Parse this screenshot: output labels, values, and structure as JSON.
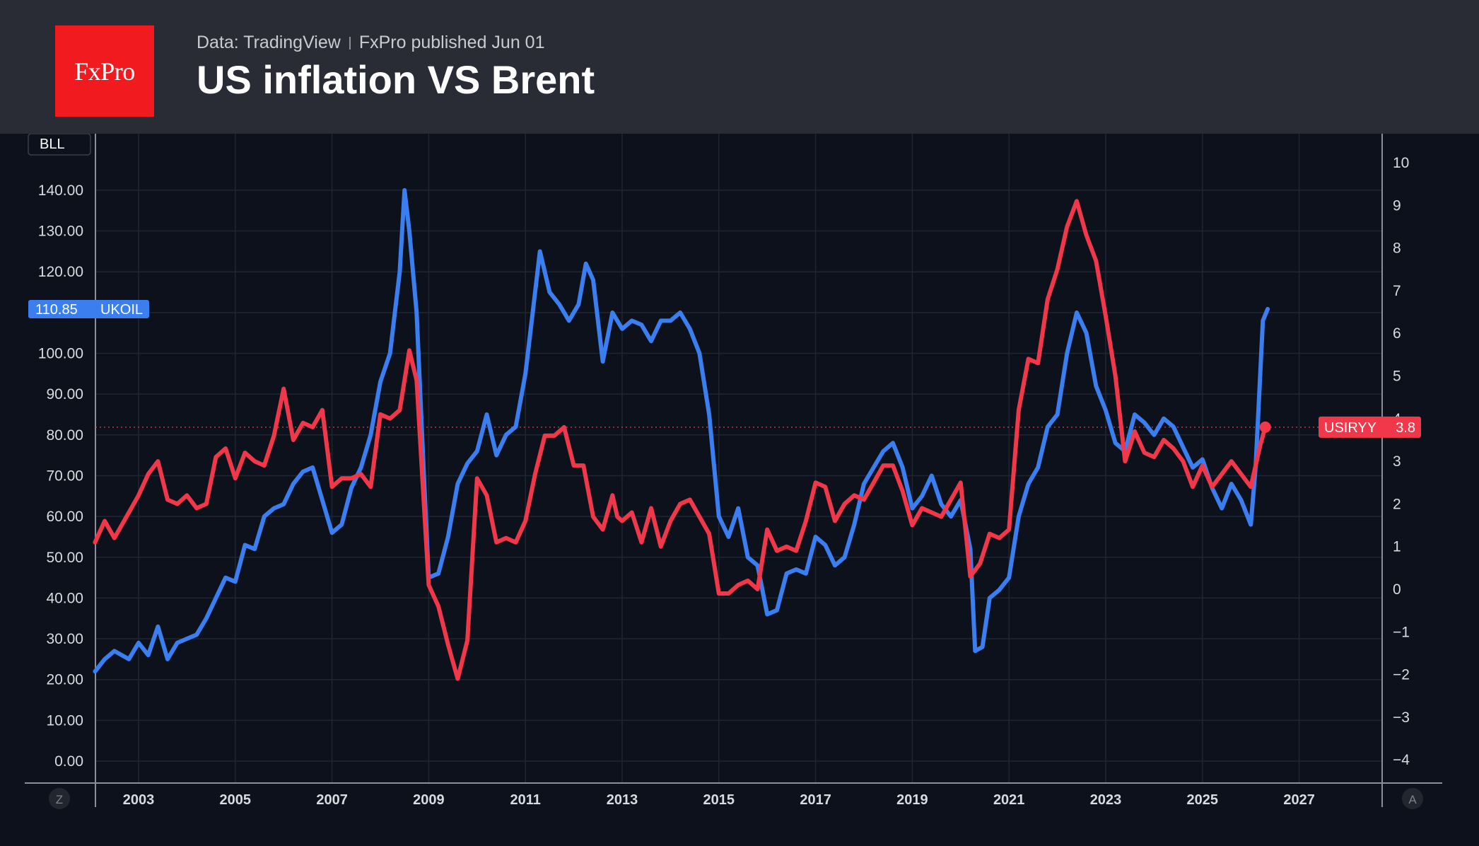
{
  "header": {
    "logo_text": "FxPro",
    "source": "Data: TradingView",
    "published": "FxPro published Jun 01",
    "title": "US inflation VS Brent"
  },
  "chart_data": {
    "type": "line",
    "x_axis": {
      "ticks": [
        "2003",
        "2005",
        "2007",
        "2009",
        "2011",
        "2013",
        "2015",
        "2017",
        "2019",
        "2021",
        "2023",
        "2025",
        "2027"
      ],
      "range": [
        2002.1,
        2029.8
      ]
    },
    "left_axis": {
      "ticks": [
        "0.00",
        "10.00",
        "20.00",
        "30.00",
        "40.00",
        "50.00",
        "60.00",
        "70.00",
        "80.00",
        "90.00",
        "100.00",
        "110.00",
        "120.00",
        "130.00",
        "140.00"
      ],
      "range": [
        0,
        145
      ],
      "unit": "USD"
    },
    "right_axis": {
      "ticks": [
        "10",
        "9",
        "8",
        "7",
        "6",
        "5",
        "4",
        "3",
        "2",
        "1",
        "0",
        "−1",
        "−2",
        "−3",
        "−4"
      ],
      "range": [
        -4,
        10.5
      ]
    },
    "grid": true,
    "corner_label": "BLL",
    "scale_buttons": {
      "left": "Z",
      "right": "A"
    },
    "series": [
      {
        "name": "UKOIL",
        "axis": "left",
        "color": "#3a7ef0",
        "last_value_label": "110.85",
        "points": [
          [
            2002.1,
            22
          ],
          [
            2002.3,
            25
          ],
          [
            2002.5,
            27
          ],
          [
            2002.8,
            25
          ],
          [
            2003.0,
            29
          ],
          [
            2003.2,
            26
          ],
          [
            2003.4,
            33
          ],
          [
            2003.6,
            25
          ],
          [
            2003.8,
            29
          ],
          [
            2004.0,
            30
          ],
          [
            2004.2,
            31
          ],
          [
            2004.4,
            35
          ],
          [
            2004.6,
            40
          ],
          [
            2004.8,
            45
          ],
          [
            2005.0,
            44
          ],
          [
            2005.2,
            53
          ],
          [
            2005.4,
            52
          ],
          [
            2005.6,
            60
          ],
          [
            2005.8,
            62
          ],
          [
            2006.0,
            63
          ],
          [
            2006.2,
            68
          ],
          [
            2006.4,
            71
          ],
          [
            2006.6,
            72
          ],
          [
            2006.8,
            64
          ],
          [
            2007.0,
            56
          ],
          [
            2007.2,
            58
          ],
          [
            2007.4,
            67
          ],
          [
            2007.6,
            72
          ],
          [
            2007.8,
            80
          ],
          [
            2008.0,
            93
          ],
          [
            2008.2,
            100
          ],
          [
            2008.4,
            120
          ],
          [
            2008.5,
            140
          ],
          [
            2008.6,
            130
          ],
          [
            2008.75,
            110
          ],
          [
            2008.9,
            70
          ],
          [
            2009.0,
            45
          ],
          [
            2009.2,
            46
          ],
          [
            2009.4,
            55
          ],
          [
            2009.6,
            68
          ],
          [
            2009.8,
            73
          ],
          [
            2010.0,
            76
          ],
          [
            2010.2,
            85
          ],
          [
            2010.4,
            75
          ],
          [
            2010.6,
            80
          ],
          [
            2010.8,
            82
          ],
          [
            2011.0,
            95
          ],
          [
            2011.15,
            110
          ],
          [
            2011.3,
            125
          ],
          [
            2011.5,
            115
          ],
          [
            2011.7,
            112
          ],
          [
            2011.9,
            108
          ],
          [
            2012.1,
            112
          ],
          [
            2012.25,
            122
          ],
          [
            2012.4,
            118
          ],
          [
            2012.6,
            98
          ],
          [
            2012.8,
            110
          ],
          [
            2013.0,
            106
          ],
          [
            2013.2,
            108
          ],
          [
            2013.4,
            107
          ],
          [
            2013.6,
            103
          ],
          [
            2013.8,
            108
          ],
          [
            2014.0,
            108
          ],
          [
            2014.2,
            110
          ],
          [
            2014.4,
            106
          ],
          [
            2014.6,
            100
          ],
          [
            2014.8,
            85
          ],
          [
            2015.0,
            60
          ],
          [
            2015.2,
            55
          ],
          [
            2015.4,
            62
          ],
          [
            2015.6,
            50
          ],
          [
            2015.8,
            48
          ],
          [
            2016.0,
            36
          ],
          [
            2016.2,
            37
          ],
          [
            2016.4,
            46
          ],
          [
            2016.6,
            47
          ],
          [
            2016.8,
            46
          ],
          [
            2017.0,
            55
          ],
          [
            2017.2,
            53
          ],
          [
            2017.4,
            48
          ],
          [
            2017.6,
            50
          ],
          [
            2017.8,
            58
          ],
          [
            2018.0,
            68
          ],
          [
            2018.2,
            72
          ],
          [
            2018.4,
            76
          ],
          [
            2018.6,
            78
          ],
          [
            2018.8,
            72
          ],
          [
            2019.0,
            62
          ],
          [
            2019.2,
            65
          ],
          [
            2019.4,
            70
          ],
          [
            2019.6,
            63
          ],
          [
            2019.8,
            60
          ],
          [
            2020.0,
            64
          ],
          [
            2020.2,
            52
          ],
          [
            2020.3,
            27
          ],
          [
            2020.45,
            28
          ],
          [
            2020.6,
            40
          ],
          [
            2020.8,
            42
          ],
          [
            2021.0,
            45
          ],
          [
            2021.2,
            60
          ],
          [
            2021.4,
            68
          ],
          [
            2021.6,
            72
          ],
          [
            2021.8,
            82
          ],
          [
            2022.0,
            85
          ],
          [
            2022.2,
            100
          ],
          [
            2022.4,
            110
          ],
          [
            2022.6,
            105
          ],
          [
            2022.8,
            92
          ],
          [
            2023.0,
            86
          ],
          [
            2023.2,
            78
          ],
          [
            2023.4,
            76
          ],
          [
            2023.6,
            85
          ],
          [
            2023.8,
            83
          ],
          [
            2024.0,
            80
          ],
          [
            2024.2,
            84
          ],
          [
            2024.4,
            82
          ],
          [
            2024.6,
            77
          ],
          [
            2024.8,
            72
          ],
          [
            2025.0,
            74
          ],
          [
            2025.2,
            67
          ],
          [
            2025.4,
            62
          ],
          [
            2025.6,
            68
          ],
          [
            2025.8,
            64
          ],
          [
            2026.0,
            58
          ],
          [
            2026.1,
            72
          ],
          [
            2026.25,
            108
          ],
          [
            2026.35,
            110.85
          ]
        ]
      },
      {
        "name": "USIRYY",
        "axis": "right",
        "color": "#f0384a",
        "last_value_label": "3.8",
        "points": [
          [
            2002.1,
            1.1
          ],
          [
            2002.3,
            1.6
          ],
          [
            2002.5,
            1.2
          ],
          [
            2002.8,
            1.8
          ],
          [
            2003.0,
            2.2
          ],
          [
            2003.2,
            2.7
          ],
          [
            2003.4,
            3.0
          ],
          [
            2003.6,
            2.1
          ],
          [
            2003.8,
            2.0
          ],
          [
            2004.0,
            2.2
          ],
          [
            2004.2,
            1.9
          ],
          [
            2004.4,
            2.0
          ],
          [
            2004.6,
            3.1
          ],
          [
            2004.8,
            3.3
          ],
          [
            2005.0,
            2.6
          ],
          [
            2005.2,
            3.2
          ],
          [
            2005.4,
            3.0
          ],
          [
            2005.6,
            2.9
          ],
          [
            2005.8,
            3.6
          ],
          [
            2006.0,
            4.7
          ],
          [
            2006.2,
            3.5
          ],
          [
            2006.4,
            3.9
          ],
          [
            2006.6,
            3.8
          ],
          [
            2006.8,
            4.2
          ],
          [
            2007.0,
            2.4
          ],
          [
            2007.2,
            2.6
          ],
          [
            2007.4,
            2.6
          ],
          [
            2007.6,
            2.7
          ],
          [
            2007.8,
            2.4
          ],
          [
            2008.0,
            4.1
          ],
          [
            2008.2,
            4.0
          ],
          [
            2008.4,
            4.2
          ],
          [
            2008.6,
            5.6
          ],
          [
            2008.75,
            4.9
          ],
          [
            2008.9,
            2.0
          ],
          [
            2009.0,
            0.1
          ],
          [
            2009.2,
            -0.4
          ],
          [
            2009.4,
            -1.3
          ],
          [
            2009.6,
            -2.1
          ],
          [
            2009.8,
            -1.2
          ],
          [
            2010.0,
            2.6
          ],
          [
            2010.2,
            2.2
          ],
          [
            2010.4,
            1.1
          ],
          [
            2010.6,
            1.2
          ],
          [
            2010.8,
            1.1
          ],
          [
            2011.0,
            1.6
          ],
          [
            2011.2,
            2.7
          ],
          [
            2011.4,
            3.6
          ],
          [
            2011.6,
            3.6
          ],
          [
            2011.8,
            3.8
          ],
          [
            2012.0,
            2.9
          ],
          [
            2012.2,
            2.9
          ],
          [
            2012.4,
            1.7
          ],
          [
            2012.6,
            1.4
          ],
          [
            2012.8,
            2.2
          ],
          [
            2012.9,
            1.7
          ],
          [
            2013.0,
            1.6
          ],
          [
            2013.2,
            1.8
          ],
          [
            2013.4,
            1.1
          ],
          [
            2013.6,
            1.9
          ],
          [
            2013.8,
            1.0
          ],
          [
            2014.0,
            1.6
          ],
          [
            2014.2,
            2.0
          ],
          [
            2014.4,
            2.1
          ],
          [
            2014.6,
            1.7
          ],
          [
            2014.8,
            1.3
          ],
          [
            2015.0,
            -0.1
          ],
          [
            2015.2,
            -0.1
          ],
          [
            2015.4,
            0.1
          ],
          [
            2015.6,
            0.2
          ],
          [
            2015.8,
            0.0
          ],
          [
            2016.0,
            1.4
          ],
          [
            2016.2,
            0.9
          ],
          [
            2016.4,
            1.0
          ],
          [
            2016.6,
            0.9
          ],
          [
            2016.8,
            1.6
          ],
          [
            2017.0,
            2.5
          ],
          [
            2017.2,
            2.4
          ],
          [
            2017.4,
            1.6
          ],
          [
            2017.6,
            2.0
          ],
          [
            2017.8,
            2.2
          ],
          [
            2018.0,
            2.1
          ],
          [
            2018.2,
            2.5
          ],
          [
            2018.4,
            2.9
          ],
          [
            2018.6,
            2.9
          ],
          [
            2018.8,
            2.3
          ],
          [
            2019.0,
            1.5
          ],
          [
            2019.2,
            1.9
          ],
          [
            2019.4,
            1.8
          ],
          [
            2019.6,
            1.7
          ],
          [
            2019.8,
            2.1
          ],
          [
            2020.0,
            2.5
          ],
          [
            2020.2,
            0.3
          ],
          [
            2020.4,
            0.6
          ],
          [
            2020.6,
            1.3
          ],
          [
            2020.8,
            1.2
          ],
          [
            2021.0,
            1.4
          ],
          [
            2021.2,
            4.2
          ],
          [
            2021.4,
            5.4
          ],
          [
            2021.6,
            5.3
          ],
          [
            2021.8,
            6.8
          ],
          [
            2022.0,
            7.5
          ],
          [
            2022.2,
            8.5
          ],
          [
            2022.4,
            9.1
          ],
          [
            2022.6,
            8.3
          ],
          [
            2022.8,
            7.7
          ],
          [
            2023.0,
            6.4
          ],
          [
            2023.2,
            5.0
          ],
          [
            2023.4,
            3.0
          ],
          [
            2023.6,
            3.7
          ],
          [
            2023.8,
            3.2
          ],
          [
            2024.0,
            3.1
          ],
          [
            2024.2,
            3.5
          ],
          [
            2024.4,
            3.3
          ],
          [
            2024.6,
            3.0
          ],
          [
            2024.8,
            2.4
          ],
          [
            2025.0,
            2.9
          ],
          [
            2025.2,
            2.4
          ],
          [
            2025.4,
            2.7
          ],
          [
            2025.6,
            3.0
          ],
          [
            2025.8,
            2.7
          ],
          [
            2026.0,
            2.4
          ],
          [
            2026.2,
            3.4
          ],
          [
            2026.3,
            3.8
          ]
        ]
      }
    ],
    "reference_line": {
      "axis": "right",
      "value": 3.8,
      "style": "dotted",
      "color": "#f0384a"
    }
  }
}
